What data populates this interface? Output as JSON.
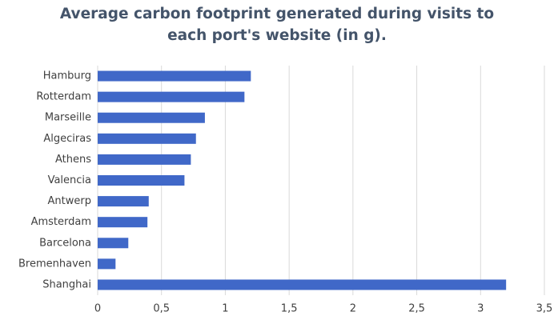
{
  "chart_data": {
    "type": "bar",
    "orientation": "horizontal",
    "title": "Average carbon footprint generated during visits to each port's website (in g).",
    "categories": [
      "Hamburg",
      "Rotterdam",
      "Marseille",
      "Algeciras",
      "Athens",
      "Valencia",
      "Antwerp",
      "Amsterdam",
      "Barcelona",
      "Bremenhaven",
      "Shanghai"
    ],
    "values": [
      1.2,
      1.15,
      0.84,
      0.77,
      0.73,
      0.68,
      0.4,
      0.39,
      0.24,
      0.14,
      3.2
    ],
    "color": "#4068c8",
    "xlim": [
      0,
      3.5
    ],
    "xticks": [
      0,
      {
        "value": 0.5,
        "label": "0,5"
      },
      1,
      {
        "value": 1.5,
        "label": "1,5"
      },
      2,
      {
        "value": 2.5,
        "label": "2,5"
      },
      3,
      {
        "value": 3.5,
        "label": "3,5"
      }
    ],
    "grid": true
  }
}
